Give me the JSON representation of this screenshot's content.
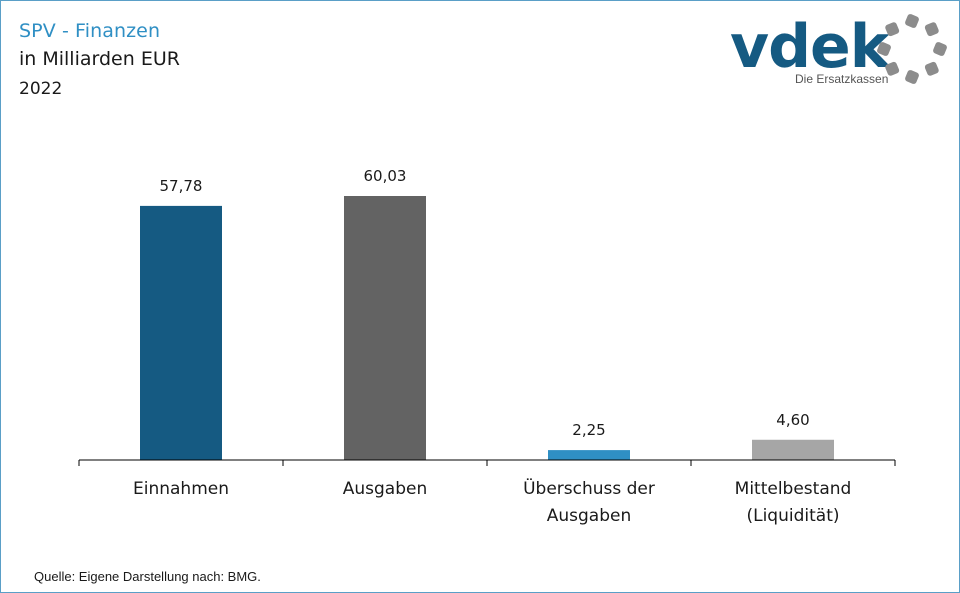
{
  "header": {
    "title": "SPV - Finanzen",
    "subtitle": "in Milliarden EUR",
    "year": "2022"
  },
  "logo": {
    "wordmark": "vdek",
    "tagline": "Die Ersatzkassen"
  },
  "colors": {
    "title": "#2f8fc4",
    "bar_einnahmen": "#155a82",
    "bar_ausgaben": "#636363",
    "bar_ueberschuss": "#2f8fc4",
    "bar_mittelbestand": "#a6a6a6",
    "logo_ring": "#8c8c8c"
  },
  "chart_data": {
    "type": "bar",
    "title": "SPV - Finanzen",
    "ylabel": "in Milliarden EUR",
    "xlabel": "",
    "ylim": [
      0,
      60.03
    ],
    "grid": false,
    "categories": [
      [
        "Einnahmen"
      ],
      [
        "Ausgaben"
      ],
      [
        "Überschuss der",
        "Ausgaben"
      ],
      [
        "Mittelbestand",
        "(Liquidität)"
      ]
    ],
    "values": [
      57.78,
      60.03,
      2.25,
      4.6
    ],
    "data_labels": [
      "57,78",
      "60,03",
      "2,25",
      "4,60"
    ],
    "bar_colors": [
      "#155a82",
      "#636363",
      "#2f8fc4",
      "#a6a6a6"
    ]
  },
  "source": "Quelle: Eigene Darstellung nach: BMG."
}
